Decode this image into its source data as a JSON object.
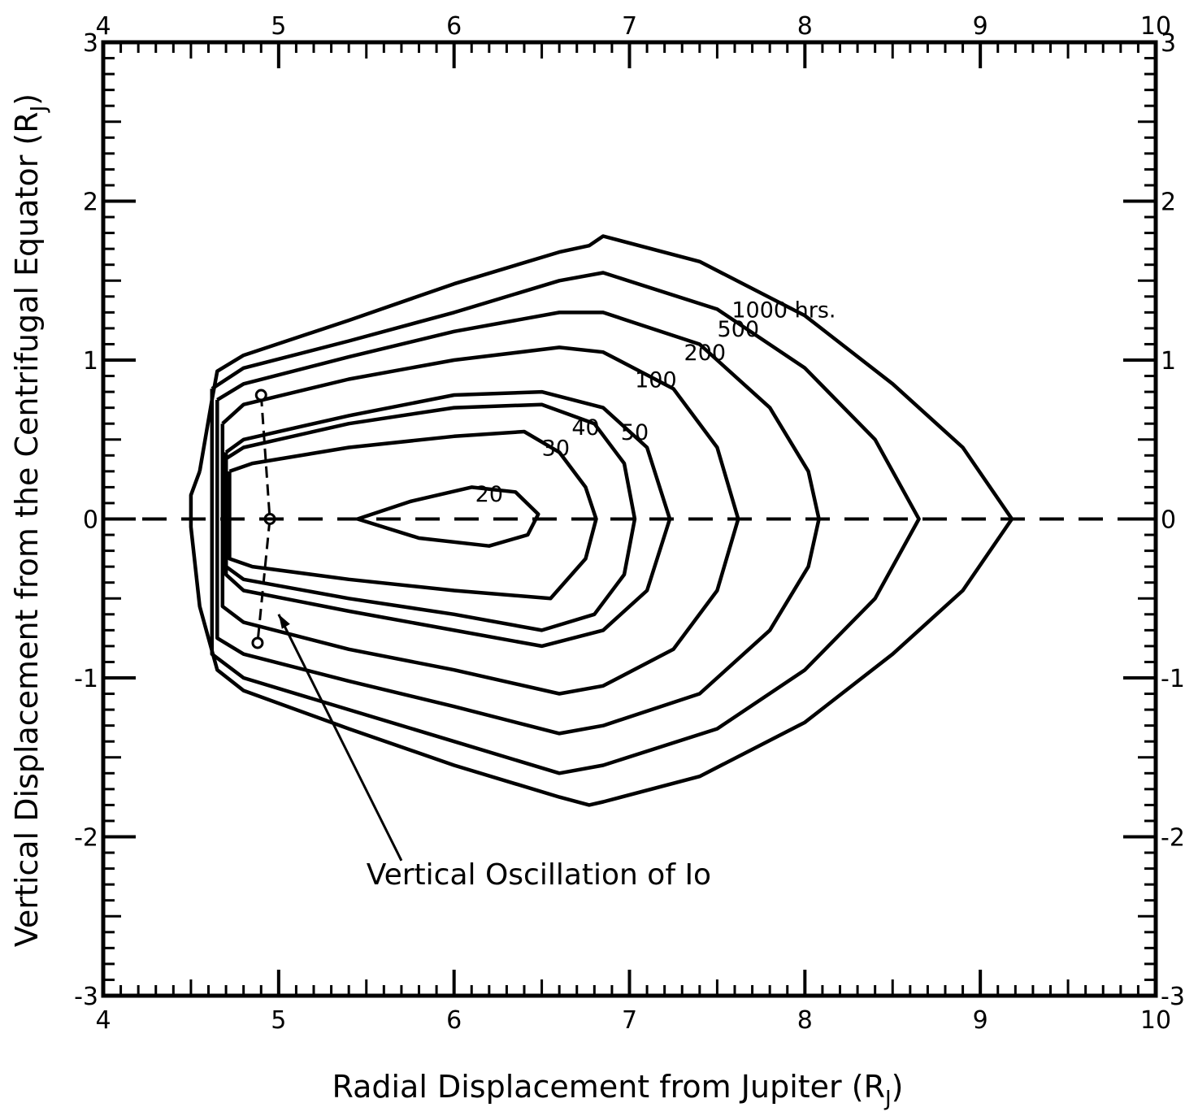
{
  "chart_data": {
    "type": "contour",
    "title": "",
    "xlabel": "Radial Displacement from Jupiter",
    "xlabel_unit": "(R",
    "xlabel_unit_sub": "J",
    "xlabel_unit_close": ")",
    "ylabel": "Vertical Displacement from the Centrifugal Equator",
    "ylabel_unit": "(R",
    "ylabel_unit_sub": "J",
    "ylabel_unit_close": ")",
    "xlim": [
      4,
      10
    ],
    "ylim": [
      -3,
      3
    ],
    "grid": false,
    "x_ticks": [
      "4",
      "5",
      "6",
      "7",
      "8",
      "9",
      "10"
    ],
    "y_ticks": [
      "3",
      "2",
      "1",
      "0",
      "-1",
      "-2",
      "-3"
    ],
    "contours": [
      {
        "label": "20",
        "label_at": [
          6.2,
          0.16
        ],
        "points": [
          [
            5.45,
            0
          ],
          [
            5.75,
            0.11
          ],
          [
            6.1,
            0.2
          ],
          [
            6.35,
            0.17
          ],
          [
            6.48,
            0.03
          ],
          [
            6.42,
            -0.1
          ],
          [
            6.2,
            -0.17
          ],
          [
            5.8,
            -0.12
          ],
          [
            5.45,
            0
          ]
        ]
      },
      {
        "label": "30",
        "label_at": [
          6.58,
          0.45
        ],
        "points": [
          [
            4.72,
            0.3
          ],
          [
            4.85,
            0.35
          ],
          [
            5.4,
            0.45
          ],
          [
            6.0,
            0.52
          ],
          [
            6.4,
            0.55
          ],
          [
            6.6,
            0.42
          ],
          [
            6.75,
            0.2
          ],
          [
            6.81,
            0
          ],
          [
            6.75,
            -0.25
          ],
          [
            6.55,
            -0.5
          ],
          [
            6.0,
            -0.45
          ],
          [
            5.4,
            -0.38
          ],
          [
            4.85,
            -0.3
          ],
          [
            4.72,
            -0.25
          ],
          [
            4.72,
            0.3
          ]
        ]
      },
      {
        "label": "40",
        "label_at": [
          6.75,
          0.58
        ],
        "points": [
          [
            4.7,
            0.38
          ],
          [
            4.8,
            0.45
          ],
          [
            5.4,
            0.6
          ],
          [
            6.0,
            0.7
          ],
          [
            6.5,
            0.72
          ],
          [
            6.8,
            0.6
          ],
          [
            6.97,
            0.35
          ],
          [
            7.03,
            0
          ],
          [
            6.97,
            -0.35
          ],
          [
            6.8,
            -0.6
          ],
          [
            6.5,
            -0.7
          ],
          [
            6.0,
            -0.6
          ],
          [
            5.4,
            -0.5
          ],
          [
            4.8,
            -0.38
          ],
          [
            4.7,
            -0.3
          ],
          [
            4.7,
            0.38
          ]
        ]
      },
      {
        "label": "50",
        "label_at": [
          7.03,
          0.55
        ],
        "points": [
          [
            4.7,
            0.42
          ],
          [
            4.8,
            0.5
          ],
          [
            5.4,
            0.65
          ],
          [
            6.0,
            0.78
          ],
          [
            6.5,
            0.8
          ],
          [
            6.85,
            0.7
          ],
          [
            7.1,
            0.45
          ],
          [
            7.23,
            0
          ],
          [
            7.1,
            -0.45
          ],
          [
            6.85,
            -0.7
          ],
          [
            6.5,
            -0.8
          ],
          [
            6.0,
            -0.7
          ],
          [
            5.4,
            -0.58
          ],
          [
            4.8,
            -0.45
          ],
          [
            4.7,
            -0.35
          ],
          [
            4.7,
            0.42
          ]
        ]
      },
      {
        "label": "100",
        "label_at": [
          7.15,
          0.88
        ],
        "points": [
          [
            4.68,
            0.6
          ],
          [
            4.8,
            0.72
          ],
          [
            5.4,
            0.88
          ],
          [
            6.0,
            1.0
          ],
          [
            6.6,
            1.08
          ],
          [
            6.85,
            1.05
          ],
          [
            7.25,
            0.82
          ],
          [
            7.5,
            0.45
          ],
          [
            7.62,
            0
          ],
          [
            7.5,
            -0.45
          ],
          [
            7.25,
            -0.82
          ],
          [
            6.85,
            -1.05
          ],
          [
            6.6,
            -1.1
          ],
          [
            6.0,
            -0.95
          ],
          [
            5.4,
            -0.82
          ],
          [
            4.8,
            -0.65
          ],
          [
            4.68,
            -0.55
          ],
          [
            4.68,
            0.6
          ]
        ]
      },
      {
        "label": "200",
        "label_at": [
          7.43,
          1.05
        ],
        "points": [
          [
            4.65,
            0.75
          ],
          [
            4.8,
            0.85
          ],
          [
            5.4,
            1.02
          ],
          [
            6.0,
            1.18
          ],
          [
            6.6,
            1.3
          ],
          [
            6.85,
            1.3
          ],
          [
            7.4,
            1.1
          ],
          [
            7.8,
            0.7
          ],
          [
            8.02,
            0.3
          ],
          [
            8.08,
            0
          ],
          [
            8.02,
            -0.3
          ],
          [
            7.8,
            -0.7
          ],
          [
            7.4,
            -1.1
          ],
          [
            6.85,
            -1.3
          ],
          [
            6.6,
            -1.35
          ],
          [
            6.0,
            -1.18
          ],
          [
            5.4,
            -1.02
          ],
          [
            4.8,
            -0.85
          ],
          [
            4.65,
            -0.75
          ],
          [
            4.65,
            0.75
          ]
        ]
      },
      {
        "label": "500",
        "label_at": [
          7.62,
          1.2
        ],
        "points": [
          [
            4.62,
            0.82
          ],
          [
            4.8,
            0.95
          ],
          [
            5.4,
            1.12
          ],
          [
            6.0,
            1.3
          ],
          [
            6.6,
            1.5
          ],
          [
            6.85,
            1.55
          ],
          [
            7.5,
            1.32
          ],
          [
            8.0,
            0.95
          ],
          [
            8.4,
            0.5
          ],
          [
            8.65,
            0
          ],
          [
            8.4,
            -0.5
          ],
          [
            8.0,
            -0.95
          ],
          [
            7.5,
            -1.32
          ],
          [
            6.85,
            -1.55
          ],
          [
            6.6,
            -1.6
          ],
          [
            6.0,
            -1.4
          ],
          [
            5.4,
            -1.2
          ],
          [
            4.8,
            -1.0
          ],
          [
            4.62,
            -0.85
          ],
          [
            4.62,
            0.82
          ]
        ]
      },
      {
        "label": "1000 hrs.",
        "label_at": [
          7.88,
          1.32
        ],
        "points": [
          [
            4.55,
            0.3
          ],
          [
            4.62,
            0.75
          ],
          [
            4.65,
            0.93
          ],
          [
            4.8,
            1.03
          ],
          [
            5.4,
            1.25
          ],
          [
            6.0,
            1.48
          ],
          [
            6.6,
            1.68
          ],
          [
            6.77,
            1.72
          ],
          [
            6.85,
            1.78
          ],
          [
            7.4,
            1.62
          ],
          [
            8.0,
            1.28
          ],
          [
            8.5,
            0.85
          ],
          [
            8.9,
            0.45
          ],
          [
            9.18,
            0
          ],
          [
            8.9,
            -0.45
          ],
          [
            8.5,
            -0.85
          ],
          [
            8.0,
            -1.28
          ],
          [
            7.4,
            -1.62
          ],
          [
            6.85,
            -1.78
          ],
          [
            6.77,
            -1.8
          ],
          [
            6.6,
            -1.75
          ],
          [
            6.0,
            -1.55
          ],
          [
            5.4,
            -1.32
          ],
          [
            4.8,
            -1.08
          ],
          [
            4.65,
            -0.95
          ],
          [
            4.55,
            -0.55
          ],
          [
            4.5,
            -0.05
          ],
          [
            4.5,
            0.15
          ],
          [
            4.55,
            0.3
          ]
        ]
      }
    ],
    "io_oscillation": [
      [
        4.9,
        0.78
      ],
      [
        4.95,
        0.0
      ],
      [
        4.88,
        -0.78
      ]
    ],
    "annotation": {
      "text": "Vertical Oscillation of Io",
      "text_at": [
        5.5,
        -2.3
      ],
      "arrow_from": [
        5.7,
        -2.15
      ],
      "arrow_to": [
        5.0,
        -0.6
      ]
    }
  }
}
